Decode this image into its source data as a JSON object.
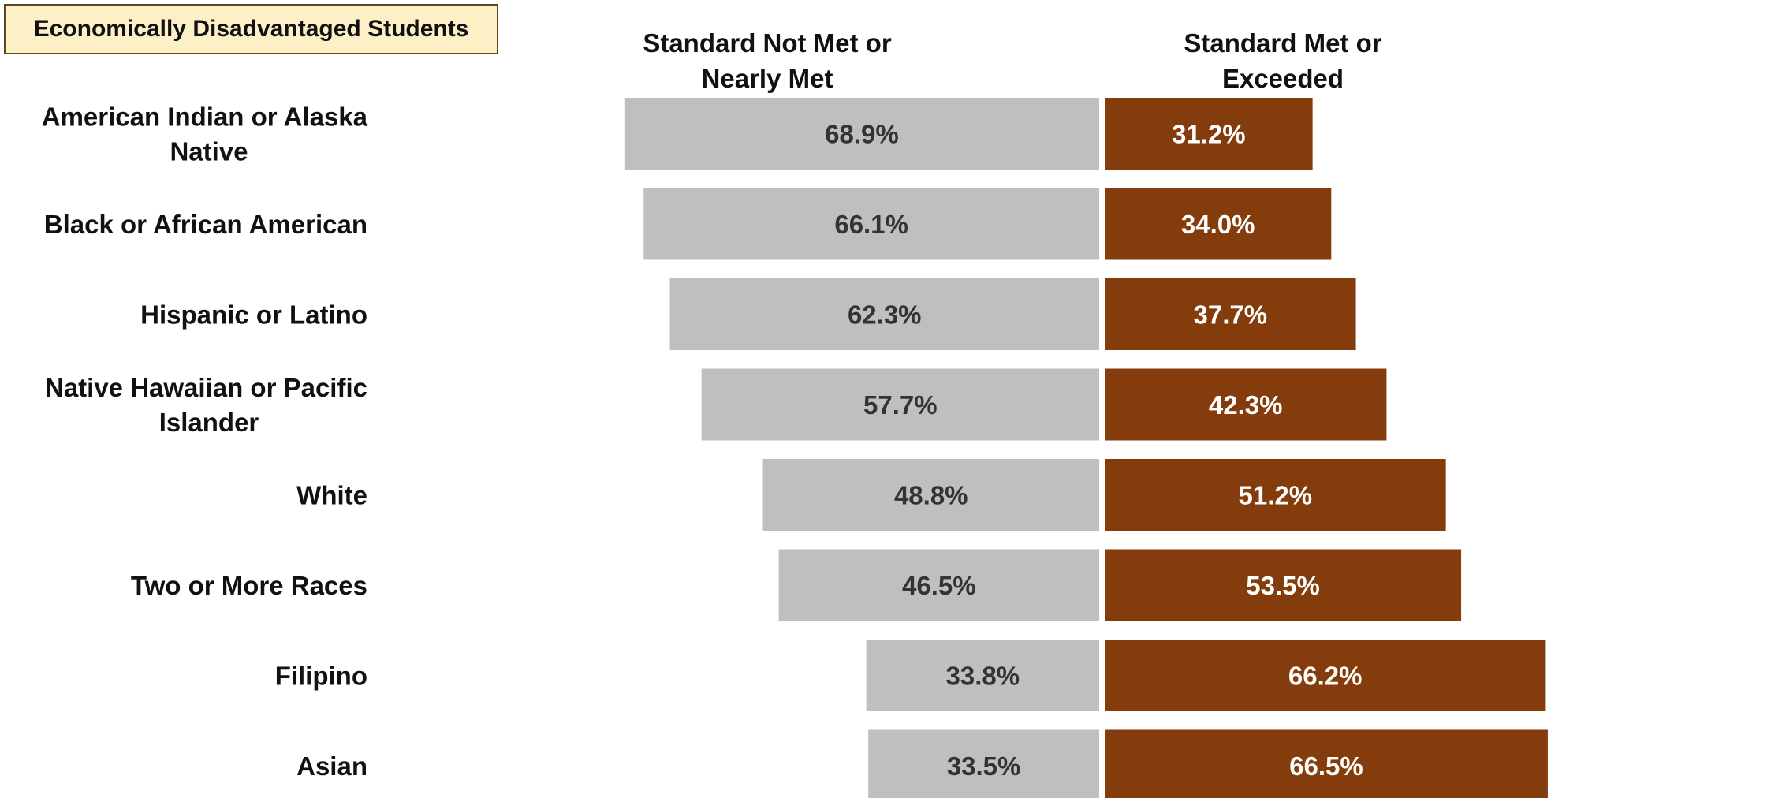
{
  "chart_data": {
    "type": "bar",
    "title": "Economically Disadvantaged Students",
    "categories": [
      "American Indian or Alaska Native",
      "Black or African American",
      "Hispanic or Latino",
      "Native Hawaiian or Pacific Islander",
      "White",
      "Two or More Races",
      "Filipino",
      "Asian"
    ],
    "category_lines": [
      [
        "American Indian or Alaska",
        "Native"
      ],
      [
        "Black or African American"
      ],
      [
        "Hispanic or Latino"
      ],
      [
        "Native Hawaiian or Pacific",
        "Islander"
      ],
      [
        "White"
      ],
      [
        "Two or More Races"
      ],
      [
        "Filipino"
      ],
      [
        "Asian"
      ]
    ],
    "series": [
      {
        "name": "Standard Not Met or Nearly Met",
        "name_lines": [
          "Standard Not Met or",
          "Nearly Met"
        ],
        "values": [
          68.9,
          66.1,
          62.3,
          57.7,
          48.8,
          46.5,
          33.8,
          33.5
        ],
        "labels": [
          "68.9%",
          "66.1%",
          "62.3%",
          "57.7%",
          "48.8%",
          "46.5%",
          "33.8%",
          "33.5%"
        ],
        "color": "#bfbfbf",
        "label_color": "#333333"
      },
      {
        "name": "Standard Met or Exceeded",
        "name_lines": [
          "Standard Met or",
          "Exceeded"
        ],
        "values": [
          31.2,
          34.0,
          37.7,
          42.3,
          51.2,
          53.5,
          66.2,
          66.5
        ],
        "labels": [
          "31.2%",
          "34.0%",
          "37.7%",
          "42.3%",
          "51.2%",
          "53.5%",
          "66.2%",
          "66.5%"
        ],
        "color": "#843c0c",
        "label_color": "#ffffff"
      }
    ],
    "orientation": "horizontal-diverging",
    "unit": "%"
  }
}
